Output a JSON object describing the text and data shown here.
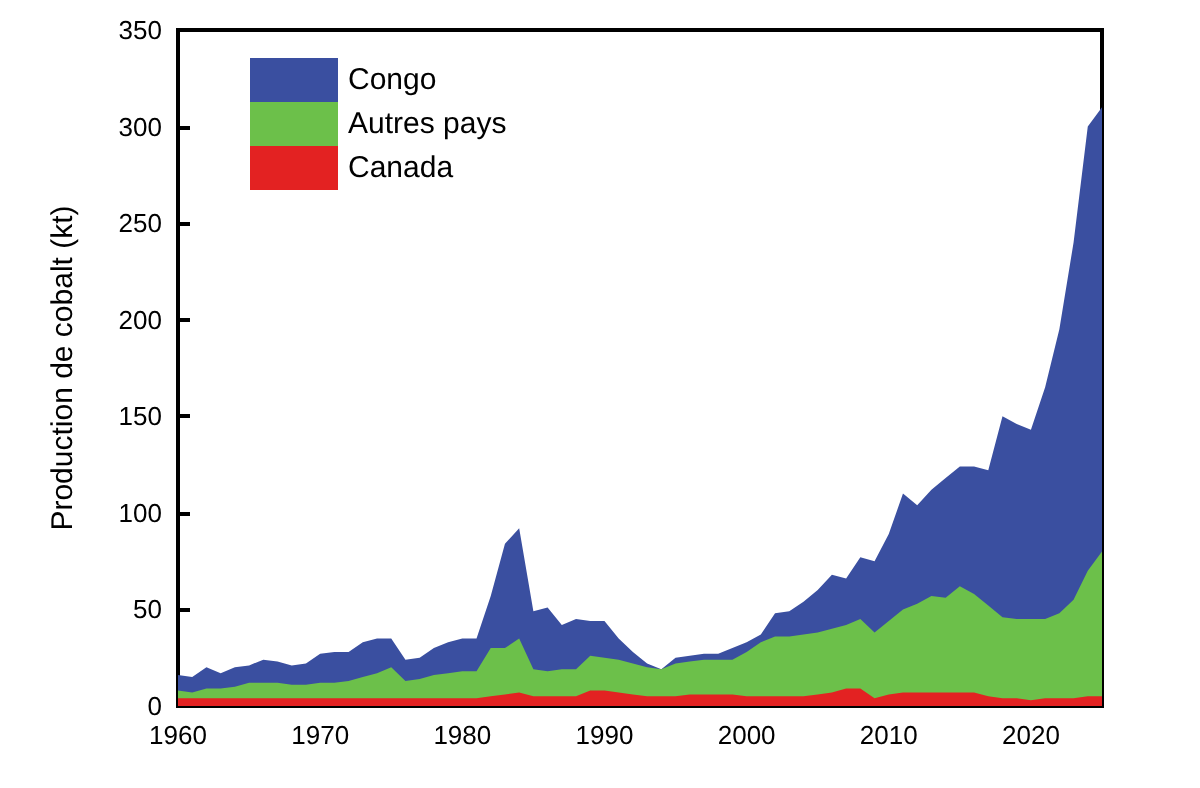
{
  "chart_data": {
    "type": "area",
    "stacked": true,
    "ylabel": "Production de cobalt (kt)",
    "x": [
      1960,
      1961,
      1962,
      1963,
      1964,
      1965,
      1966,
      1967,
      1968,
      1969,
      1970,
      1971,
      1972,
      1973,
      1974,
      1975,
      1976,
      1977,
      1978,
      1979,
      1980,
      1981,
      1982,
      1983,
      1984,
      1985,
      1986,
      1987,
      1988,
      1989,
      1990,
      1991,
      1992,
      1993,
      1994,
      1995,
      1996,
      1997,
      1998,
      1999,
      2000,
      2001,
      2002,
      2003,
      2004,
      2005,
      2006,
      2007,
      2008,
      2009,
      2010,
      2011,
      2012,
      2013,
      2014,
      2015,
      2016,
      2017,
      2018,
      2019,
      2020,
      2021,
      2022,
      2023,
      2024,
      2025
    ],
    "series": [
      {
        "name": "Canada",
        "color": "#e32222",
        "values": [
          4,
          4,
          4,
          4,
          4,
          4,
          4,
          4,
          4,
          4,
          4,
          4,
          4,
          4,
          4,
          4,
          4,
          4,
          4,
          4,
          4,
          4,
          5,
          6,
          7,
          5,
          5,
          5,
          5,
          8,
          8,
          7,
          6,
          5,
          5,
          5,
          6,
          6,
          6,
          6,
          5,
          5,
          5,
          5,
          5,
          6,
          7,
          9,
          9,
          4,
          6,
          7,
          7,
          7,
          7,
          7,
          7,
          5,
          4,
          4,
          3,
          4,
          4,
          4,
          5,
          5
        ]
      },
      {
        "name": "Autres pays",
        "color": "#6cc04a",
        "values": [
          4,
          3,
          5,
          5,
          6,
          8,
          8,
          8,
          7,
          7,
          8,
          8,
          9,
          11,
          13,
          16,
          9,
          10,
          12,
          13,
          14,
          14,
          25,
          24,
          28,
          14,
          13,
          14,
          14,
          18,
          17,
          17,
          16,
          15,
          14,
          17,
          17,
          18,
          18,
          18,
          23,
          28,
          31,
          31,
          32,
          32,
          33,
          33,
          36,
          34,
          38,
          43,
          46,
          50,
          49,
          55,
          51,
          47,
          42,
          41,
          42,
          41,
          44,
          51,
          65,
          75
        ]
      },
      {
        "name": "Congo",
        "color": "#3a4fa0",
        "values": [
          8,
          8,
          11,
          8,
          10,
          9,
          12,
          11,
          10,
          11,
          15,
          16,
          15,
          18,
          18,
          15,
          11,
          11,
          14,
          16,
          17,
          17,
          27,
          54,
          57,
          30,
          33,
          23,
          26,
          18,
          19,
          11,
          6,
          2,
          0,
          3,
          3,
          3,
          3,
          6,
          5,
          4,
          12,
          13,
          17,
          22,
          28,
          24,
          32,
          37,
          45,
          60,
          51,
          55,
          62,
          62,
          66,
          70,
          104,
          101,
          98,
          120,
          147,
          185,
          230,
          230
        ]
      }
    ],
    "xlim": [
      1960,
      2025
    ],
    "xticks": [
      1960,
      1970,
      1980,
      1990,
      2000,
      2010,
      2020
    ],
    "ylim": [
      0,
      350
    ],
    "yticks": [
      0,
      50,
      100,
      150,
      200,
      250,
      300,
      350
    ],
    "legend": "top left",
    "grid": false
  }
}
